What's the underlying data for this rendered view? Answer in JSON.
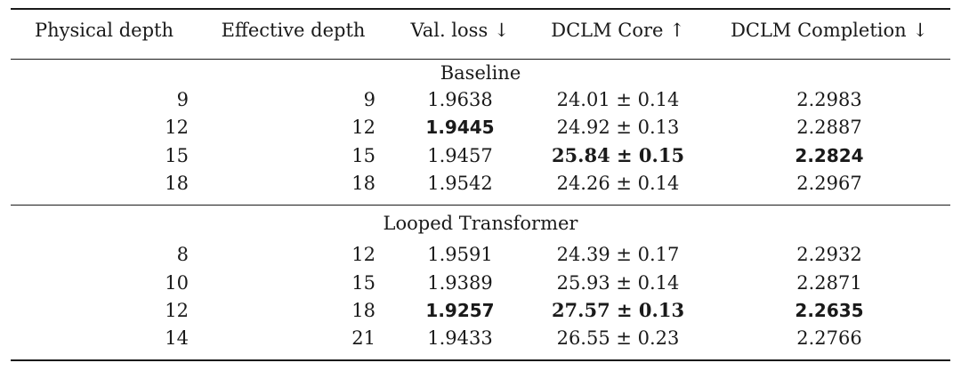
{
  "table": {
    "headers": [
      "Physical depth",
      "Effective depth",
      "Val. loss ↓",
      "DCLM Core ↑",
      "DCLM Completion ↓"
    ],
    "sections": [
      {
        "title": "Baseline",
        "rows": [
          {
            "physical": "9",
            "effective": "9",
            "val_loss": "1.9638",
            "core": "24.01 ± 0.14",
            "completion": "2.2983"
          },
          {
            "physical": "12",
            "effective": "12",
            "val_loss": "1.9445",
            "core": "24.92 ± 0.13",
            "completion": "2.2887"
          },
          {
            "physical": "15",
            "effective": "15",
            "val_loss": "1.9457",
            "core": "25.84 ± 0.15",
            "completion": "2.2824"
          },
          {
            "physical": "18",
            "effective": "18",
            "val_loss": "1.9542",
            "core": "24.26 ± 0.14",
            "completion": "2.2967"
          }
        ]
      },
      {
        "title": "Looped Transformer",
        "rows": [
          {
            "physical": "8",
            "effective": "12",
            "val_loss": "1.9591",
            "core": "24.39 ± 0.17",
            "completion": "2.2932"
          },
          {
            "physical": "10",
            "effective": "15",
            "val_loss": "1.9389",
            "core": "25.93 ± 0.14",
            "completion": "2.2871"
          },
          {
            "physical": "12",
            "effective": "18",
            "val_loss": "1.9257",
            "core": "27.57 ± 0.13",
            "completion": "2.2635"
          },
          {
            "physical": "14",
            "effective": "21",
            "val_loss": "1.9433",
            "core": "26.55 ± 0.23",
            "completion": "2.2766"
          }
        ]
      }
    ]
  }
}
